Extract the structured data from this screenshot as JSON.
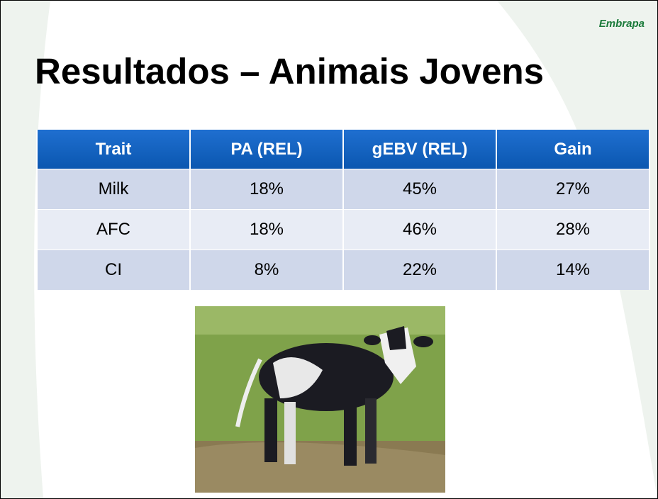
{
  "logo": "Embrapa",
  "title": "Resultados – Animais Jovens",
  "table": {
    "header": [
      "Trait",
      "PA (REL)",
      "gEBV (REL)",
      "Gain"
    ],
    "rows": [
      [
        "Milk",
        "18%",
        "45%",
        "27%"
      ],
      [
        "AFC",
        "18%",
        "46%",
        "28%"
      ],
      [
        "CI",
        "8%",
        "22%",
        "14%"
      ]
    ]
  }
}
